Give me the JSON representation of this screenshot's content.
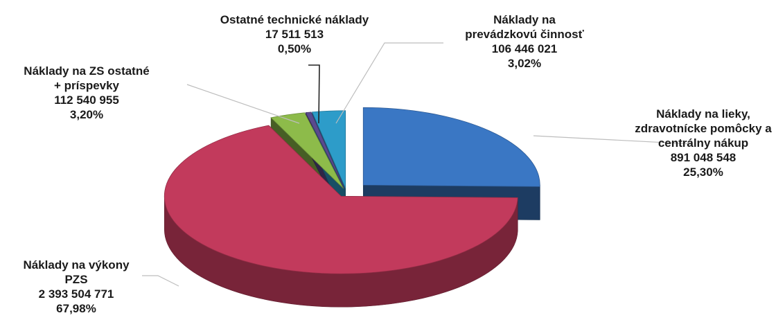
{
  "chart_data": {
    "type": "pie",
    "style": "3d-exploded",
    "legend": "none",
    "slices": [
      {
        "label_lines": [
          "Náklady na lieky,",
          "zdravotnícke pomôcky a",
          "centrálny nákup"
        ],
        "value": 891048548,
        "value_text": "891 048 548",
        "percent": 25.3,
        "percent_text": "25,30%",
        "color": "#3a77c4"
      },
      {
        "label_lines": [
          "Náklady na výkony",
          "PZS"
        ],
        "value": 2393504771,
        "value_text": "2 393 504 771",
        "percent": 67.98,
        "percent_text": "67,98%",
        "color": "#c23a5c"
      },
      {
        "label_lines": [
          "Náklady na ZS ostatné",
          "+ príspevky"
        ],
        "value": 112540955,
        "value_text": "112 540 955",
        "percent": 3.2,
        "percent_text": "3,20%",
        "color": "#8dbb4a"
      },
      {
        "label_lines": [
          "Ostatné technické náklady"
        ],
        "value": 17511513,
        "value_text": "17 511 513",
        "percent": 0.5,
        "percent_text": "0,50%",
        "color": "#5a4a8e"
      },
      {
        "label_lines": [
          "Náklady na",
          "prevádzkovú činnosť"
        ],
        "value": 106446021,
        "value_text": "106 446 021",
        "percent": 3.02,
        "percent_text": "3,02%",
        "color": "#2d9cc9"
      }
    ]
  }
}
